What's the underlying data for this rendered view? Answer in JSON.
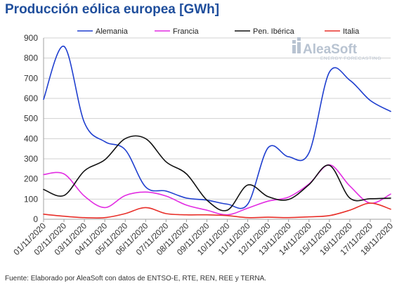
{
  "title": "Producción eólica europea [GWh]",
  "source": "Fuente: Elaborado por AleaSoft con datos de ENTSO-E, RTE, REN, REE y TERNA.",
  "logo": {
    "name": "AleaSoft",
    "tagline": "ENERGY FORECASTING"
  },
  "chart_data": {
    "type": "line",
    "title": "Producción eólica europea [GWh]",
    "xlabel": "",
    "ylabel": "",
    "ylim": [
      0,
      900
    ],
    "yticks": [
      "0",
      "100",
      "200",
      "300",
      "400",
      "500",
      "600",
      "700",
      "800",
      "900"
    ],
    "grid": "horizontal",
    "legend_position": "top",
    "categories": [
      "01/11/2020",
      "02/11/2020",
      "03/11/2020",
      "04/11/2020",
      "05/11/2020",
      "06/11/2020",
      "07/11/2020",
      "08/11/2020",
      "09/11/2020",
      "10/11/2020",
      "11/11/2020",
      "12/11/2020",
      "13/11/2020",
      "14/11/2020",
      "15/11/2020",
      "16/11/2020",
      "17/11/2020",
      "18/11/2020"
    ],
    "series": [
      {
        "name": "Alemania",
        "color": "#1f3fcf",
        "values": [
          595,
          858,
          480,
          385,
          345,
          160,
          140,
          105,
          95,
          75,
          75,
          355,
          310,
          330,
          730,
          690,
          590,
          535
        ]
      },
      {
        "name": "Francia",
        "color": "#e22de2",
        "values": [
          222,
          225,
          115,
          58,
          118,
          135,
          115,
          70,
          45,
          22,
          55,
          90,
          110,
          175,
          270,
          165,
          80,
          125
        ]
      },
      {
        "name": "Pen. Ibérica",
        "color": "#111111",
        "values": [
          148,
          118,
          240,
          295,
          400,
          400,
          285,
          225,
          95,
          45,
          170,
          112,
          98,
          172,
          268,
          105,
          102,
          105
        ]
      },
      {
        "name": "Italia",
        "color": "#e8302a",
        "values": [
          25,
          15,
          8,
          8,
          28,
          58,
          28,
          22,
          22,
          18,
          8,
          10,
          8,
          12,
          18,
          45,
          80,
          50
        ]
      }
    ]
  }
}
